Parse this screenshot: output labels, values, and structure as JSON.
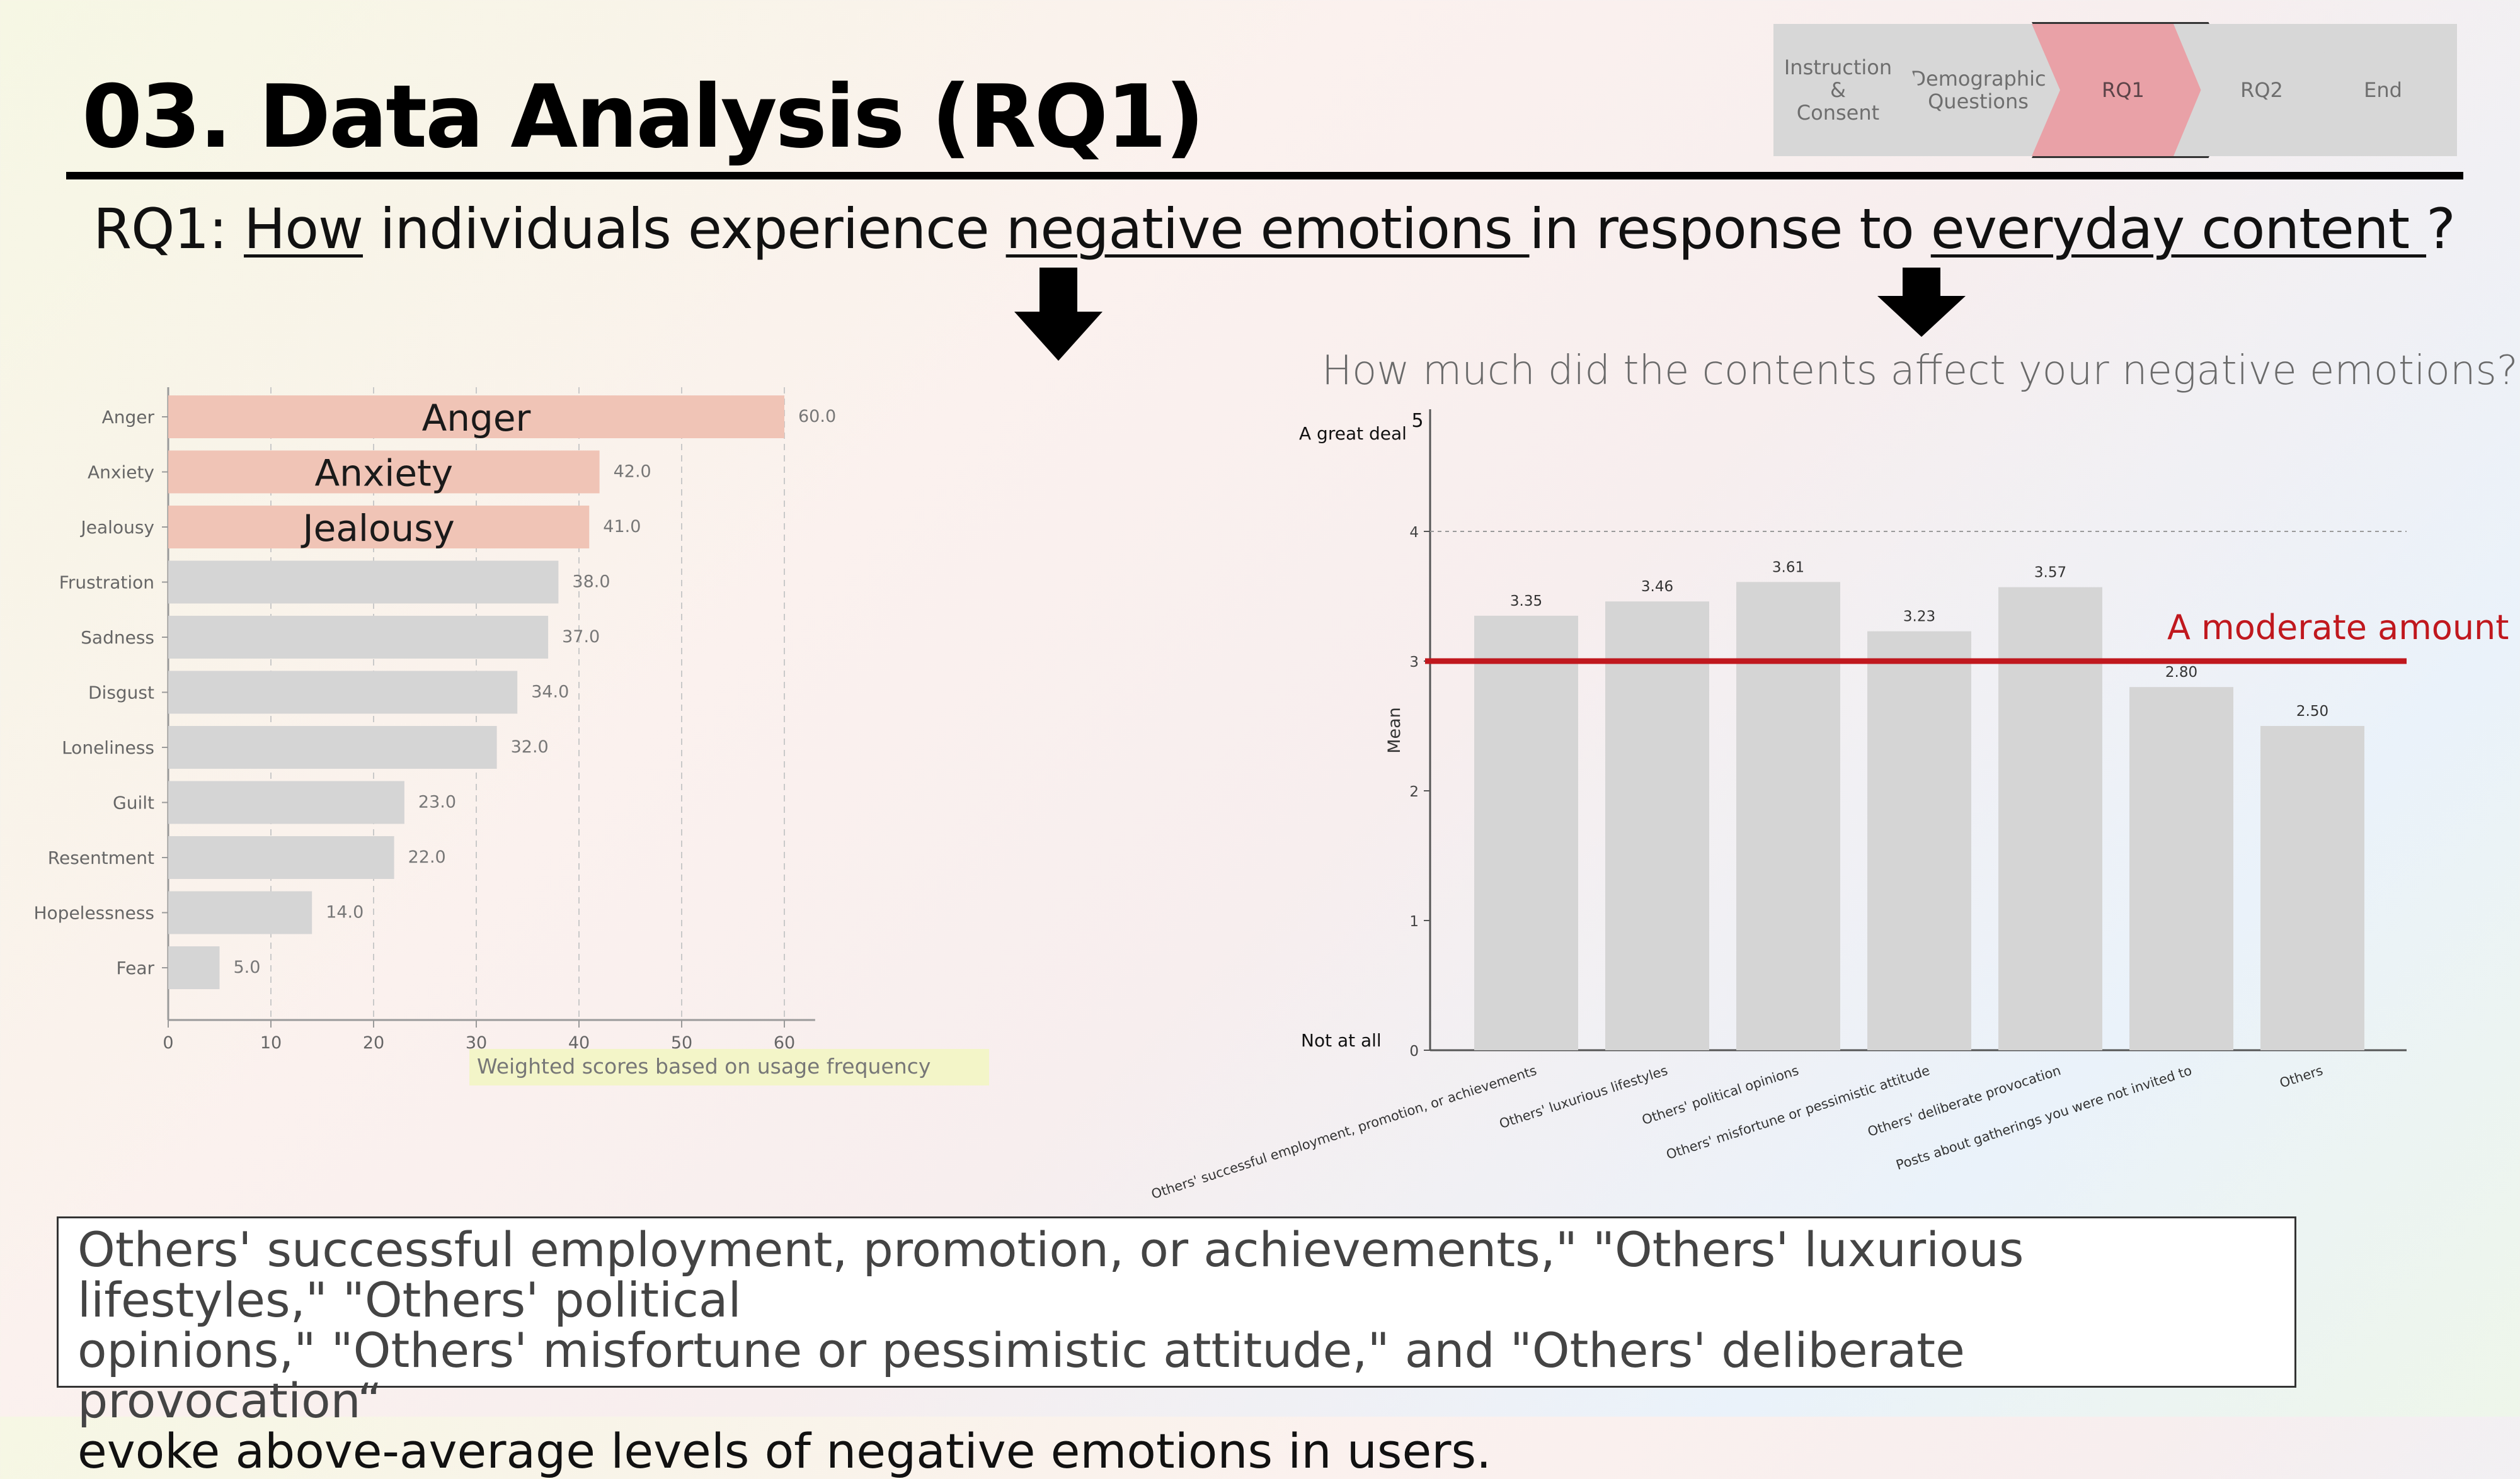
{
  "slide": {
    "title": "03. Data Analysis (RQ1)",
    "rq_prefix": "RQ1: ",
    "rq_how": "How",
    "rq_text1": " individuals experience ",
    "rq_emotions": "negative emotions ",
    "rq_text2": "in response to ",
    "rq_content": "everyday content ",
    "rq_end": "?"
  },
  "steps": [
    {
      "label": "Instruction\n&\nConsent",
      "active": false
    },
    {
      "label": "Demographic\nQuestions",
      "active": false
    },
    {
      "label": "RQ1",
      "active": true
    },
    {
      "label": "RQ2",
      "active": false
    },
    {
      "label": "End",
      "active": false
    }
  ],
  "chart_data": [
    {
      "type": "bar",
      "orientation": "horizontal",
      "categories": [
        "Anger",
        "Anxiety",
        "Jealousy",
        "Frustration",
        "Sadness",
        "Disgust",
        "Loneliness",
        "Guilt",
        "Resentment",
        "Hopelessness",
        "Fear"
      ],
      "values": [
        60.0,
        42.0,
        41.0,
        38.0,
        37.0,
        34.0,
        32.0,
        23.0,
        22.0,
        14.0,
        5.0
      ],
      "value_labels": [
        "60.0",
        "42.0",
        "41.0",
        "38.0",
        "37.0",
        "34.0",
        "32.0",
        "23.0",
        "22.0",
        "14.0",
        "5.0"
      ],
      "highlighted": [
        "Anger",
        "Anxiety",
        "Jealousy"
      ],
      "bar_annotations": [
        "Anger",
        "Anxiety",
        "Jealousy"
      ],
      "xlabel": "Weighted scores based on usage frequency",
      "xlim": [
        0,
        63
      ],
      "xticks": [
        0,
        10,
        20,
        30,
        40,
        50,
        60
      ],
      "grid": "vertical dashed",
      "colors": {
        "highlight": "#f0c4b6",
        "normal": "#d5d5d5"
      }
    },
    {
      "type": "bar",
      "title": "How much did the contents affect your negative emotions?",
      "categories": [
        "Others' successful employment, promotion, or achievements",
        "Others' luxurious lifestyles",
        "Others' political opinions",
        "Others' misfortune or pessimistic attitude",
        "Others' deliberate provocation",
        "Posts about gatherings you were not invited to",
        "Others"
      ],
      "values": [
        3.35,
        3.46,
        3.61,
        3.23,
        3.57,
        2.8,
        2.5
      ],
      "value_labels": [
        "3.35",
        "3.46",
        "3.61",
        "3.23",
        "3.57",
        "2.80",
        "2.50"
      ],
      "ylabel": "Mean",
      "ylim": [
        0,
        5
      ],
      "yticks": [
        0,
        1,
        2,
        3,
        4
      ],
      "top_tick_label": "5",
      "scale_labels": {
        "top": "A great deal",
        "bottom": "Not at all"
      },
      "reference_line": {
        "value": 3,
        "label": "A moderate amount",
        "color": "#c0181e"
      },
      "grid": "horizontal dashed at 4",
      "colors": {
        "bar": "#d5d5d5"
      }
    }
  ],
  "conclusion": {
    "line1": "Others' successful employment, promotion, or achievements,\" \"Others' luxurious lifestyles,\" \"Others' political",
    "line2": "opinions,\" \"Others' misfortune or pessimistic attitude,\" and \"Others' deliberate provocation“",
    "line3": "evoke above-average levels of negative emotions in users."
  }
}
